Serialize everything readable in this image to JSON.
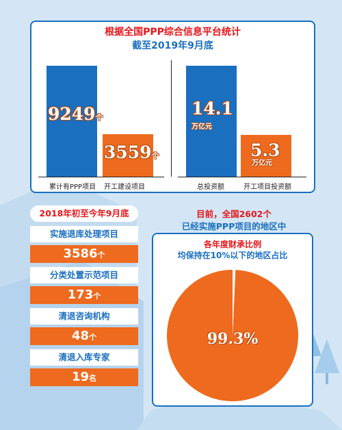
{
  "colors": {
    "accent_red": "#e4161b",
    "accent_blue": "#1a6fbe",
    "bar_blue": "#1a6fbe",
    "bar_orange": "#ee6a1e",
    "pie_orange": "#ee6a1e",
    "pie_slice": "#ffffff",
    "background": "#cfe3f4"
  },
  "header": {
    "title": "根据全国PPP综合信息平台统计",
    "subtitle": "截至2019年9月底"
  },
  "chart_data": [
    {
      "type": "bar",
      "categories": [
        "累计有PPP项目",
        "开工建设项目"
      ],
      "values": [
        9249,
        3559
      ],
      "value_labels": [
        "9249",
        "3559"
      ],
      "unit": "个",
      "ylim": [
        0,
        9249
      ]
    },
    {
      "type": "bar",
      "categories": [
        "总投资额",
        "开工项目投资额"
      ],
      "values": [
        14.1,
        5.3
      ],
      "value_labels": [
        "14.1",
        "5.3"
      ],
      "unit": "万亿元",
      "ylim": [
        0,
        14.1
      ]
    },
    {
      "type": "pie",
      "title": "目前，全国2602个",
      "subtitle": "已经实施PPP项目的地区中",
      "caption_line1": "各年度财承比例",
      "caption_line2": "均保持在10%以下的地区占比",
      "slices": [
        {
          "label": "99.3%",
          "value": 99.3
        },
        {
          "label": "",
          "value": 0.7
        }
      ]
    }
  ],
  "left_stats": {
    "header": "2018年初至今年9月底",
    "items": [
      {
        "label": "实施退库处理项目",
        "value": "3586",
        "unit": "个"
      },
      {
        "label": "分类处置示范项目",
        "value": "173",
        "unit": "个"
      },
      {
        "label": "清退咨询机构",
        "value": "48",
        "unit": "个"
      },
      {
        "label": "清退入库专家",
        "value": "19",
        "unit": "名"
      }
    ]
  }
}
